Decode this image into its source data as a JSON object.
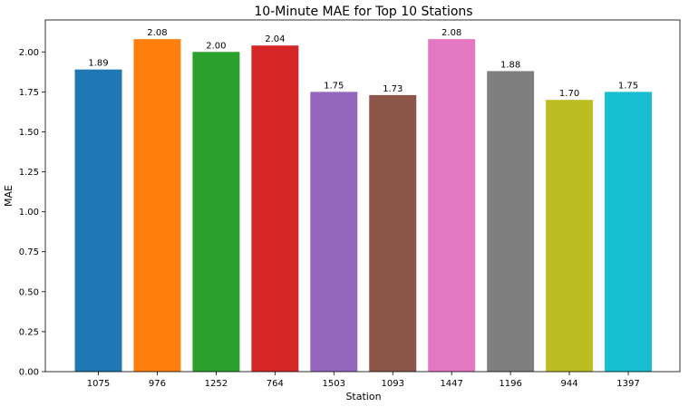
{
  "chart_data": {
    "type": "bar",
    "title": "10-Minute MAE for Top 10 Stations",
    "xlabel": "Station",
    "ylabel": "MAE",
    "categories": [
      "1075",
      "976",
      "1252",
      "764",
      "1503",
      "1093",
      "1447",
      "1196",
      "944",
      "1397"
    ],
    "values": [
      1.89,
      2.08,
      2.0,
      2.04,
      1.75,
      1.73,
      2.08,
      1.88,
      1.7,
      1.75
    ],
    "value_labels": [
      "1.89",
      "2.08",
      "2.00",
      "2.04",
      "1.75",
      "1.73",
      "2.08",
      "1.88",
      "1.70",
      "1.75"
    ],
    "colors": [
      "#1f77b4",
      "#ff7f0e",
      "#2ca02c",
      "#d62728",
      "#9467bd",
      "#8c564b",
      "#e377c2",
      "#7f7f7f",
      "#bcbd22",
      "#17becf"
    ],
    "ylim": [
      0,
      2.2
    ],
    "yticks": [
      0.0,
      0.25,
      0.5,
      0.75,
      1.0,
      1.25,
      1.5,
      1.75,
      2.0
    ],
    "ytick_labels": [
      "0.00",
      "0.25",
      "0.50",
      "0.75",
      "1.00",
      "1.25",
      "1.50",
      "1.75",
      "2.00"
    ],
    "grid": false,
    "legend": "none"
  }
}
